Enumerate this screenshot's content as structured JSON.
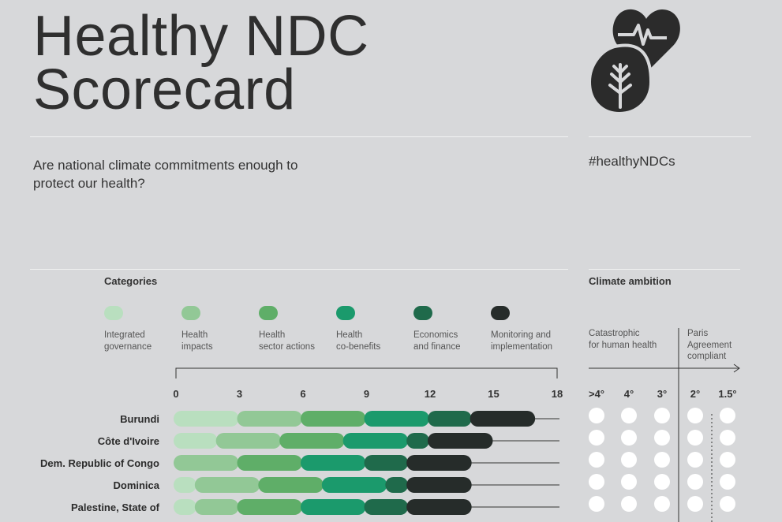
{
  "header": {
    "title": "Healthy NDC Scorecard",
    "subtitle": "Are national climate commitments enough to protect our health?",
    "hashtag": "#healthyNDCs",
    "logo_icon": "heart-leaf-logo-icon"
  },
  "legend": {
    "heading": "Categories",
    "items": [
      {
        "label_1": "Integrated",
        "label_2": "governance",
        "color": "#b9dfbf"
      },
      {
        "label_1": "Health",
        "label_2": "impacts",
        "color": "#92c896"
      },
      {
        "label_1": "Health",
        "label_2": "sector actions",
        "color": "#5fae68"
      },
      {
        "label_1": "Health",
        "label_2": "co-benefits",
        "color": "#1b9a6c"
      },
      {
        "label_1": "Economics",
        "label_2": "and finance",
        "color": "#1f6a4b"
      },
      {
        "label_1": "Monitoring and",
        "label_2": "implementation",
        "color": "#262c2a"
      }
    ]
  },
  "ambition": {
    "heading": "Climate ambition",
    "left_label_1": "Catastrophic",
    "left_label_2": "for human health",
    "right_label_1": "Paris",
    "right_label_2": "Agreement",
    "right_label_3": "compliant",
    "levels": [
      ">4°",
      "4°",
      "3°",
      "2°",
      "1.5°"
    ]
  },
  "chart_data": {
    "type": "bar",
    "stacked": true,
    "xlim": [
      0,
      18
    ],
    "ticks": [
      0,
      3,
      6,
      9,
      12,
      15,
      18
    ],
    "categories": [
      "Burundi",
      "Côte d'Ivoire",
      "Dem. Republic of Congo",
      "Dominica",
      "Palestine, State of"
    ],
    "series": [
      {
        "name": "Integrated governance",
        "values": [
          3,
          2,
          0,
          1,
          1
        ]
      },
      {
        "name": "Health impacts",
        "values": [
          3,
          3,
          3,
          3,
          2
        ]
      },
      {
        "name": "Health sector actions",
        "values": [
          3,
          3,
          3,
          3,
          3
        ]
      },
      {
        "name": "Health co-benefits",
        "values": [
          3,
          3,
          3,
          3,
          3
        ]
      },
      {
        "name": "Economics and finance",
        "values": [
          2,
          1,
          2,
          1,
          2
        ]
      },
      {
        "name": "Monitoring and implementation",
        "values": [
          3,
          3,
          3,
          3,
          3
        ]
      }
    ]
  }
}
